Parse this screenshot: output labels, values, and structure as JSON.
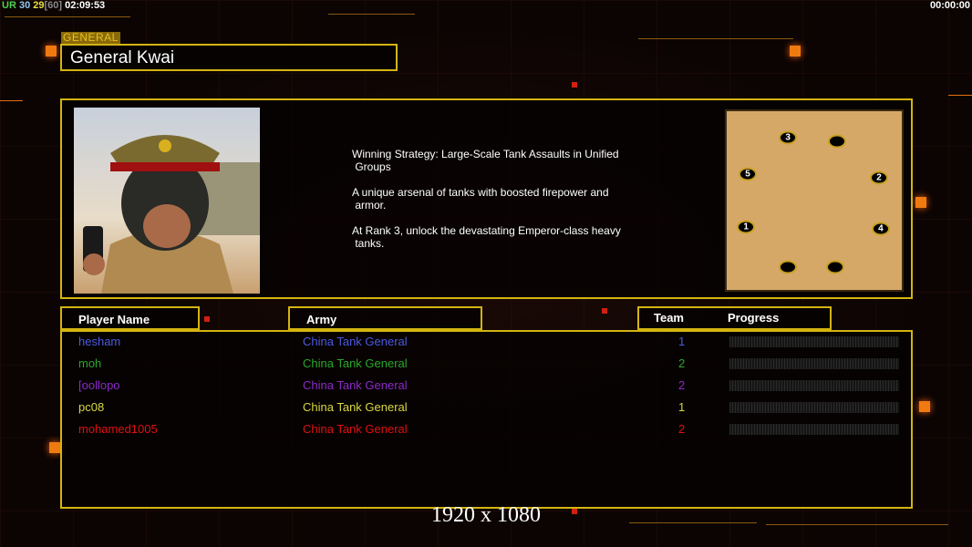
{
  "hud": {
    "ur": "UR",
    "v1": "30",
    "v2": "29",
    "v3": "[60]",
    "clock": "02:09:53",
    "timer": "00:00:00"
  },
  "general": {
    "tag": "GENERAL",
    "name": "General Kwai"
  },
  "description": [
    "Winning Strategy: Large-Scale Tank Assaults in Unified\n Groups",
    "A unique arsenal of tanks with boosted firepower and\n armor.",
    "At Rank 3, unlock the devastating Emperor-class heavy\n tanks."
  ],
  "map": {
    "slots": [
      "3",
      "",
      "5",
      "2",
      "1",
      "4",
      "",
      ""
    ]
  },
  "table": {
    "headers": {
      "player": "Player Name",
      "army": "Army",
      "team": "Team",
      "progress": "Progress"
    },
    "rows": [
      {
        "name": "hesham",
        "army": "China Tank General",
        "team": "1",
        "color": "#4a5ae0",
        "progress": 0
      },
      {
        "name": "moh",
        "army": "China Tank General",
        "team": "2",
        "color": "#2aa82a",
        "progress": 0
      },
      {
        "name": "[oollopo",
        "army": "China Tank General",
        "team": "2",
        "color": "#8a2ac8",
        "progress": 0
      },
      {
        "name": "pc08",
        "army": "China Tank General",
        "team": "1",
        "color": "#d8d840",
        "progress": 0
      },
      {
        "name": "mohamed1005",
        "army": "China Tank General",
        "team": "2",
        "color": "#e01010",
        "progress": 0
      }
    ]
  },
  "resolution": "1920 x 1080"
}
